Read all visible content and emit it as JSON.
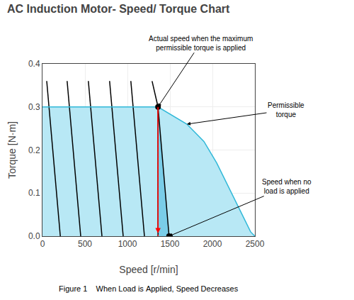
{
  "chart_data": {
    "type": "line",
    "title": "AC Induction Motor- Speed/ Torque Chart",
    "xlabel": "Speed [r/min]",
    "ylabel": "Torque [N·m]",
    "caption": "Figure 1    When Load is Applied, Speed Decreases",
    "xlim": [
      0,
      2500
    ],
    "ylim": [
      0,
      0.4
    ],
    "xticks": [
      0,
      500,
      1000,
      1500,
      2000,
      2500
    ],
    "yticks": [
      {
        "value": 0,
        "label": "0.0"
      },
      0.1,
      0.2,
      0.3,
      0.4
    ],
    "grid": true,
    "series": [
      {
        "type": "area",
        "color": "#b8e8f5",
        "x": [
          0,
          1360,
          1700,
          1900,
          2050,
          2150,
          2250,
          2350,
          2450,
          2500
        ],
        "values": [
          0.3,
          0.3,
          0.26,
          0.22,
          0.17,
          0.13,
          0.09,
          0.05,
          0.01,
          0.0
        ]
      },
      {
        "type": "polygon",
        "color": "#7acde8",
        "x": [
          1360,
          1360,
          1490,
          1360
        ],
        "values": [
          0.3,
          0.0,
          0.0,
          0.3
        ]
      },
      {
        "type": "line",
        "color": "black",
        "x": [
          50,
          210
        ],
        "values": [
          0.36,
          0.0
        ]
      },
      {
        "type": "line",
        "color": "black",
        "x": [
          290,
          450
        ],
        "values": [
          0.36,
          0.0
        ]
      },
      {
        "type": "line",
        "color": "black",
        "x": [
          540,
          700
        ],
        "values": [
          0.36,
          0.0
        ]
      },
      {
        "type": "line",
        "color": "black",
        "x": [
          790,
          950
        ],
        "values": [
          0.36,
          0.0
        ]
      },
      {
        "type": "line",
        "color": "black",
        "x": [
          1040,
          1200
        ],
        "values": [
          0.36,
          0.0
        ]
      },
      {
        "type": "line",
        "color": "black",
        "x": [
          1290,
          1360
        ],
        "values": [
          0.36,
          0.3
        ]
      },
      {
        "type": "line",
        "color": "black",
        "x": [
          1360,
          1490
        ],
        "values": [
          0.3,
          0.0
        ]
      },
      {
        "type": "line",
        "color": "black",
        "x": [
          1360,
          1360
        ],
        "values": [
          0.0,
          0.3
        ]
      },
      {
        "type": "line",
        "color": "#30b8d8",
        "x": [
          0,
          1360,
          1700,
          1900,
          2050,
          2150,
          2250,
          2350,
          2450,
          2500
        ],
        "values": [
          0.3,
          0.3,
          0.26,
          0.22,
          0.17,
          0.13,
          0.09,
          0.05,
          0.01,
          0.0
        ]
      },
      {
        "type": "scatter",
        "marker": "circle",
        "color": "black",
        "x": [
          1360,
          1490
        ],
        "values": [
          0.3,
          0.0
        ]
      },
      {
        "type": "line",
        "color": "red",
        "line_style": "dotted",
        "x": [
          1360,
          1360
        ],
        "values": [
          0.3,
          0.0
        ]
      }
    ],
    "annotations": [
      {
        "text": "Actual speed when the maximum\npermissible torque is applied",
        "x": 1360,
        "y": 0.3
      },
      {
        "text": "Permissible\ntorque",
        "x": 1700,
        "y": 0.26
      },
      {
        "text": "Speed when no\nload is applied",
        "x": 1490,
        "y": 0.0
      }
    ]
  }
}
